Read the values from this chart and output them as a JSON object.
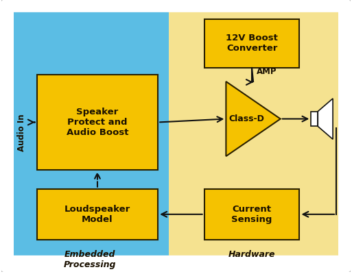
{
  "bg_white": "#ffffff",
  "bg_blue": "#5bbde4",
  "bg_yellow": "#f5e290",
  "box_orange": "#f5c200",
  "box_border": "#2a2000",
  "text_dark": "#1a1000",
  "arrow_color": "#111111",
  "border_color": "#bbbbbb",
  "embedded_label": "Embedded\nProcessing",
  "hardware_label": "Hardware",
  "audio_in_label": "Audio In",
  "speaker_protect_label": "Speaker\nProtect and\nAudio Boost",
  "loudspeaker_label": "Loudspeaker\nModel",
  "boost_label": "12V Boost\nConverter",
  "classd_label": "Class-D",
  "amp_label": "AMP",
  "current_label": "Current\nSensing"
}
